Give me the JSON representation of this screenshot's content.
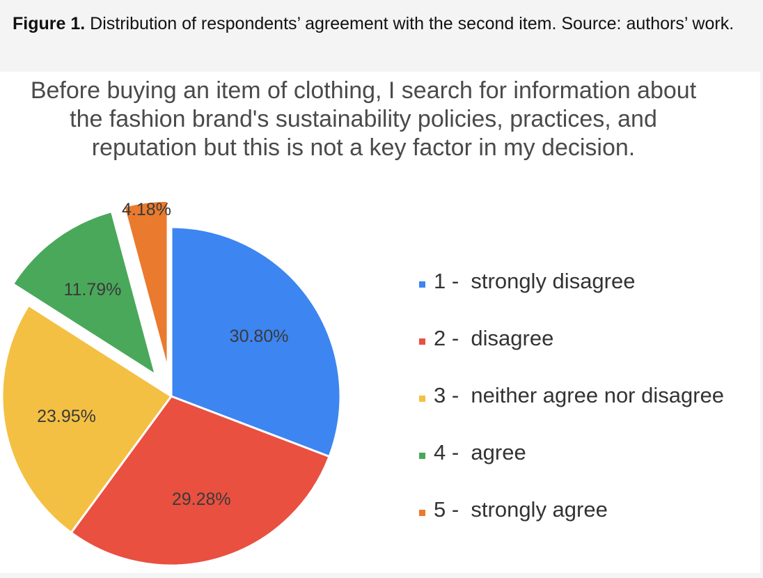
{
  "caption": {
    "lead": "Figure 1.",
    "text": " Distribution of respondents’ agreement with the second item. Source: authors’ work."
  },
  "chart_data": {
    "type": "pie",
    "title_lines": [
      "Before buying an item of clothing, I search for information about",
      "the fashion brand's sustainability policies, practices, and",
      "reputation but this is not a key factor in my decision."
    ],
    "slices": [
      {
        "label": "1 -  strongly disagree",
        "value": 30.8,
        "display": "30.80%",
        "color": "#3d85f0",
        "exploded": false
      },
      {
        "label": "2 -  disagree",
        "value": 29.28,
        "display": "29.28%",
        "color": "#e9503f",
        "exploded": false
      },
      {
        "label": "3 -  neither agree nor disagree",
        "value": 23.95,
        "display": "23.95%",
        "color": "#f4c043",
        "exploded": false
      },
      {
        "label": "4 -  agree",
        "value": 11.79,
        "display": "11.79%",
        "color": "#4aa85a",
        "exploded": true
      },
      {
        "label": "5 -  strongly agree",
        "value": 4.18,
        "display": "4.18%",
        "color": "#ea7a2e",
        "exploded": true
      }
    ],
    "legend_position": "right"
  }
}
